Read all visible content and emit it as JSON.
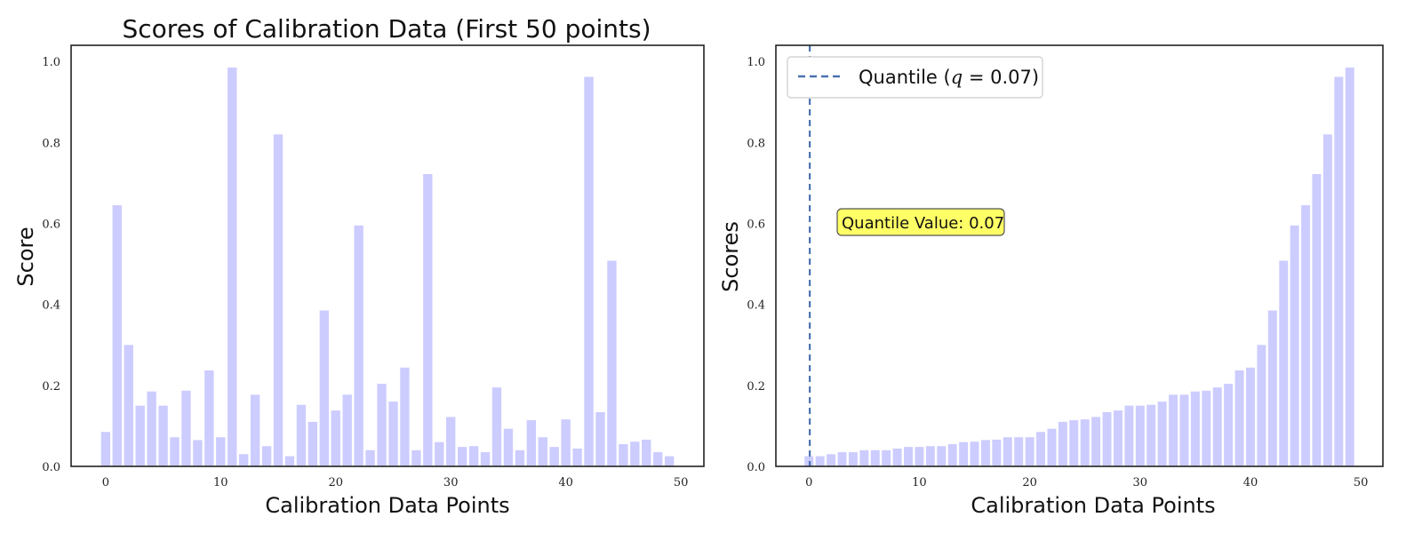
{
  "chart_data": [
    {
      "type": "bar",
      "title": "Scores of Calibration Data (First 50 points)",
      "xlabel": "Calibration Data Points",
      "ylabel": "Score",
      "xlim": [
        -3,
        52
      ],
      "ylim": [
        0,
        1.04
      ],
      "xticks": [
        0,
        10,
        20,
        30,
        40,
        50
      ],
      "yticks": [
        0.0,
        0.2,
        0.4,
        0.6,
        0.8,
        1.0
      ],
      "bar_color": "#ccccff",
      "grid": false,
      "x": [
        0,
        1,
        2,
        3,
        4,
        5,
        6,
        7,
        8,
        9,
        10,
        11,
        12,
        13,
        14,
        15,
        16,
        17,
        18,
        19,
        20,
        21,
        22,
        23,
        24,
        25,
        26,
        27,
        28,
        29,
        30,
        31,
        32,
        33,
        34,
        35,
        36,
        37,
        38,
        39,
        40,
        41,
        42,
        43,
        44,
        45,
        46,
        47,
        48,
        49
      ],
      "values": [
        0.085,
        0.645,
        0.3,
        0.15,
        0.185,
        0.15,
        0.072,
        0.187,
        0.065,
        0.237,
        0.072,
        0.985,
        0.03,
        0.177,
        0.05,
        0.82,
        0.025,
        0.152,
        0.11,
        0.385,
        0.138,
        0.177,
        0.595,
        0.04,
        0.204,
        0.16,
        0.244,
        0.04,
        0.722,
        0.06,
        0.122,
        0.048,
        0.05,
        0.035,
        0.195,
        0.093,
        0.04,
        0.114,
        0.072,
        0.048,
        0.116,
        0.044,
        0.962,
        0.134,
        0.508,
        0.055,
        0.061,
        0.066,
        0.035,
        0.025
      ]
    },
    {
      "type": "bar",
      "title": "",
      "xlabel": "Calibration Data Points",
      "ylabel": "Scores",
      "xlim": [
        -3,
        52
      ],
      "ylim": [
        0,
        1.04
      ],
      "xticks": [
        0,
        10,
        20,
        30,
        40,
        50
      ],
      "yticks": [
        0.0,
        0.2,
        0.4,
        0.6,
        0.8,
        1.0
      ],
      "bar_color": "#ccccff",
      "grid": false,
      "x": [
        0,
        1,
        2,
        3,
        4,
        5,
        6,
        7,
        8,
        9,
        10,
        11,
        12,
        13,
        14,
        15,
        16,
        17,
        18,
        19,
        20,
        21,
        22,
        23,
        24,
        25,
        26,
        27,
        28,
        29,
        30,
        31,
        32,
        33,
        34,
        35,
        36,
        37,
        38,
        39,
        40,
        41,
        42,
        43,
        44,
        45,
        46,
        47,
        48,
        49
      ],
      "values": [
        0.025,
        0.025,
        0.03,
        0.035,
        0.035,
        0.04,
        0.04,
        0.04,
        0.044,
        0.048,
        0.048,
        0.05,
        0.05,
        0.055,
        0.06,
        0.061,
        0.065,
        0.066,
        0.072,
        0.072,
        0.072,
        0.085,
        0.093,
        0.11,
        0.114,
        0.116,
        0.122,
        0.134,
        0.138,
        0.15,
        0.15,
        0.152,
        0.16,
        0.177,
        0.177,
        0.185,
        0.187,
        0.195,
        0.204,
        0.237,
        0.244,
        0.3,
        0.385,
        0.508,
        0.595,
        0.645,
        0.722,
        0.82,
        0.962,
        0.985
      ],
      "quantile_line": {
        "x": 0.07,
        "color": "#4c72b0"
      },
      "legend": {
        "label": "Quantile ($q$ = 0.07)",
        "placement": "upper-left"
      },
      "annotation": {
        "text": "Quantile Value: 0.07",
        "x": 2.5,
        "y": 0.6,
        "box_color": "#ffff66"
      }
    }
  ]
}
